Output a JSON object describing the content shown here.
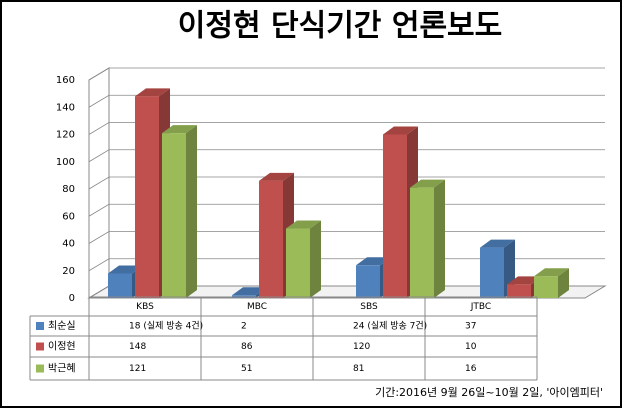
{
  "chart_data": {
    "type": "bar3d",
    "title": "이정현 단식기간 언론보도",
    "categories": [
      "KBS",
      "MBC",
      "SBS",
      "JTBC"
    ],
    "series": [
      {
        "name": "최순실",
        "color": "#4f81bd",
        "values": [
          18,
          2,
          24,
          37
        ],
        "value_labels": [
          "18 (실제 방송 4건)",
          "2",
          "24 (실제 방송 7건)",
          "37"
        ]
      },
      {
        "name": "이정현",
        "color": "#c0504d",
        "values": [
          148,
          86,
          120,
          10
        ]
      },
      {
        "name": "박근혜",
        "color": "#9bbb59",
        "values": [
          121,
          51,
          81,
          16
        ]
      }
    ],
    "ylim": [
      0,
      160
    ],
    "yticks": [
      0,
      20,
      40,
      60,
      80,
      100,
      120,
      140,
      160
    ],
    "grid": true,
    "footnote": "기간:2016년 9월 26일~10월 2일, '아이엠피터'"
  }
}
